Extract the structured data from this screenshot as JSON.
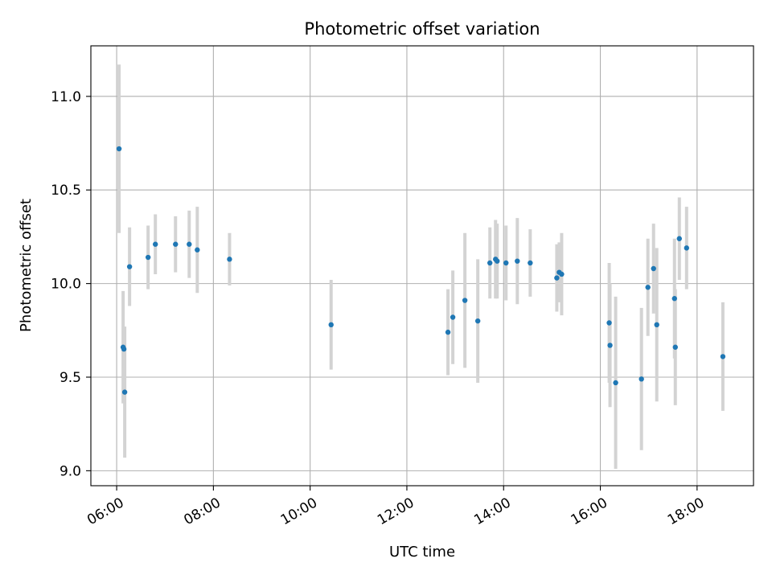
{
  "chart_data": {
    "type": "scatter",
    "title": "Photometric offset variation",
    "xlabel": "UTC time",
    "ylabel": "Photometric offset",
    "xlim": [
      "05:28",
      "19:10"
    ],
    "ylim": [
      8.92,
      11.27
    ],
    "xticks": [
      "06:00",
      "08:00",
      "10:00",
      "12:00",
      "14:00",
      "16:00",
      "18:00"
    ],
    "yticks": [
      "9.0",
      "9.5",
      "10.0",
      "10.5",
      "11.0"
    ],
    "grid": true,
    "colors": {
      "marker": "#1f77b4",
      "errorbar": "#d3d3d3",
      "grid": "#b0b0b0"
    },
    "points": [
      {
        "t": "06:03",
        "y": 10.72,
        "err": 0.45
      },
      {
        "t": "06:08",
        "y": 9.66,
        "err": 0.3
      },
      {
        "t": "06:09",
        "y": 9.65,
        "err": 0.1
      },
      {
        "t": "06:10",
        "y": 9.42,
        "err": 0.35
      },
      {
        "t": "06:16",
        "y": 10.09,
        "err": 0.21
      },
      {
        "t": "06:39",
        "y": 10.14,
        "err": 0.17
      },
      {
        "t": "06:48",
        "y": 10.21,
        "err": 0.16
      },
      {
        "t": "07:13",
        "y": 10.21,
        "err": 0.15
      },
      {
        "t": "07:30",
        "y": 10.21,
        "err": 0.18
      },
      {
        "t": "07:40",
        "y": 10.18,
        "err": 0.23
      },
      {
        "t": "08:20",
        "y": 10.13,
        "err": 0.14
      },
      {
        "t": "10:26",
        "y": 9.78,
        "err": 0.24
      },
      {
        "t": "12:51",
        "y": 9.74,
        "err": 0.23
      },
      {
        "t": "12:57",
        "y": 9.82,
        "err": 0.25
      },
      {
        "t": "13:12",
        "y": 9.91,
        "err": 0.36
      },
      {
        "t": "13:28",
        "y": 9.8,
        "err": 0.33
      },
      {
        "t": "13:43",
        "y": 10.11,
        "err": 0.19
      },
      {
        "t": "13:50",
        "y": 10.13,
        "err": 0.21
      },
      {
        "t": "13:52",
        "y": 10.12,
        "err": 0.2
      },
      {
        "t": "14:03",
        "y": 10.11,
        "err": 0.2
      },
      {
        "t": "14:17",
        "y": 10.12,
        "err": 0.23
      },
      {
        "t": "14:33",
        "y": 10.11,
        "err": 0.18
      },
      {
        "t": "15:06",
        "y": 10.03,
        "err": 0.18
      },
      {
        "t": "15:09",
        "y": 10.06,
        "err": 0.16
      },
      {
        "t": "15:12",
        "y": 10.05,
        "err": 0.22
      },
      {
        "t": "16:11",
        "y": 9.79,
        "err": 0.32
      },
      {
        "t": "16:12",
        "y": 9.67,
        "err": 0.33
      },
      {
        "t": "16:19",
        "y": 9.47,
        "err": 0.46
      },
      {
        "t": "16:51",
        "y": 9.49,
        "err": 0.38
      },
      {
        "t": "16:59",
        "y": 9.98,
        "err": 0.26
      },
      {
        "t": "17:06",
        "y": 10.08,
        "err": 0.24
      },
      {
        "t": "17:10",
        "y": 9.78,
        "err": 0.41
      },
      {
        "t": "17:32",
        "y": 9.92,
        "err": 0.32
      },
      {
        "t": "17:33",
        "y": 9.66,
        "err": 0.31
      },
      {
        "t": "17:38",
        "y": 10.24,
        "err": 0.22
      },
      {
        "t": "17:47",
        "y": 10.19,
        "err": 0.22
      },
      {
        "t": "18:32",
        "y": 9.61,
        "err": 0.29
      }
    ]
  }
}
